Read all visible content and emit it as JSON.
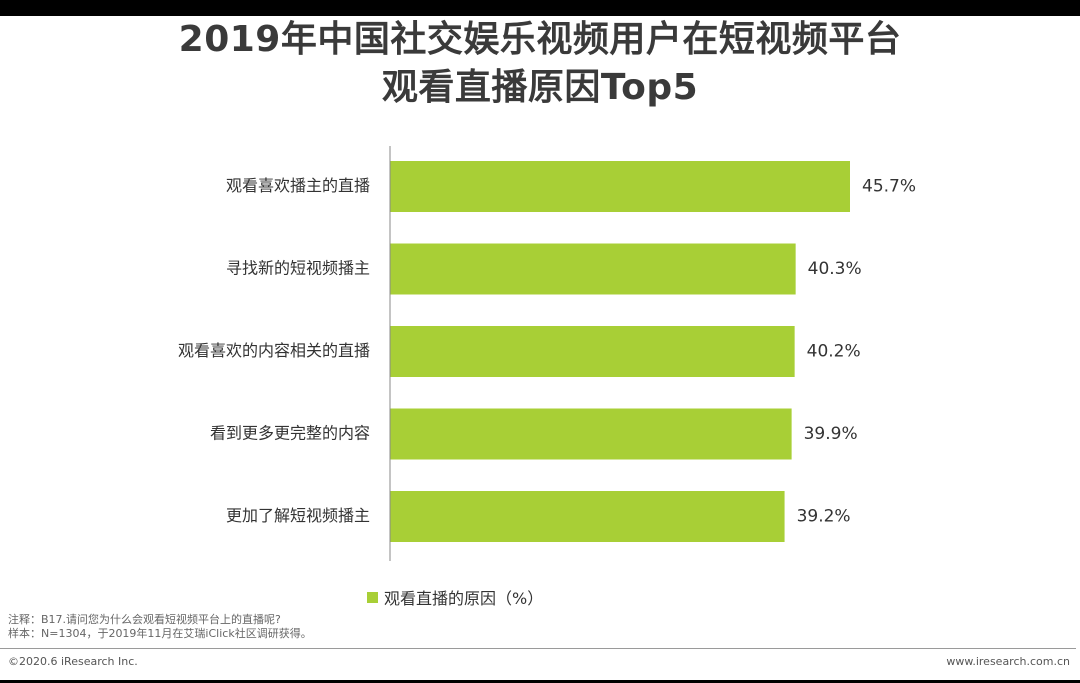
{
  "title": {
    "line1": "2019年中国社交娱乐视频用户在短视频平台",
    "line2": "观看直播原因Top5"
  },
  "chart_data": {
    "type": "bar",
    "orientation": "horizontal",
    "categories": [
      "观看喜欢播主的直播",
      "寻找新的短视频播主",
      "观看喜欢的内容相关的直播",
      "看到更多更完整的内容",
      "更加了解短视频播主"
    ],
    "series": [
      {
        "name": "观看直播的原因（%）",
        "values": [
          45.7,
          40.3,
          40.2,
          39.9,
          39.2
        ],
        "labels": [
          "45.7%",
          "40.3%",
          "40.2%",
          "39.9%",
          "39.2%"
        ]
      }
    ],
    "xlim": [
      0,
      45.7
    ],
    "grid": false,
    "legend_position": "bottom",
    "bar_color": "#a8cf36"
  },
  "notes": {
    "line1": "注释：B17.请问您为什么会观看短视频平台上的直播呢?",
    "line2": "样本：N=1304，于2019年11月在艾瑞iClick社区调研获得。"
  },
  "footer": {
    "copyright": "©2020.6 iResearch Inc.",
    "website": "www.iresearch.com.cn"
  }
}
